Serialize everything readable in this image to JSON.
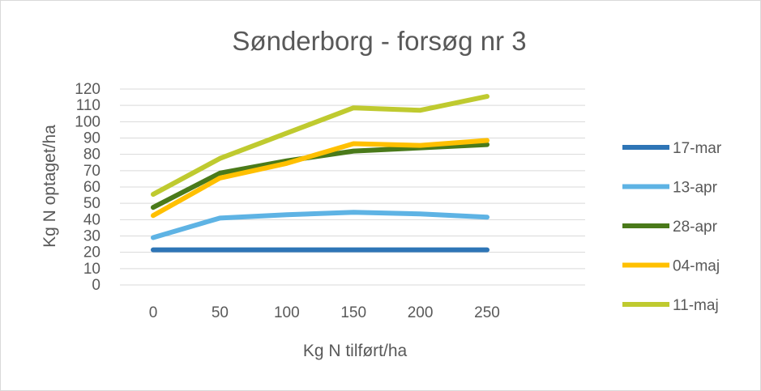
{
  "chart_data": {
    "type": "line",
    "title": "Sønderborg  - forsøg nr 3",
    "xlabel": "Kg N tilført/ha",
    "ylabel": "Kg N optaget/ha",
    "x": [
      0,
      50,
      100,
      150,
      200,
      250
    ],
    "x_tick_labels": [
      "0",
      "50",
      "100",
      "150",
      "200",
      "250"
    ],
    "ylim": [
      0,
      120
    ],
    "y_ticks": [
      0,
      10,
      20,
      30,
      40,
      50,
      60,
      70,
      80,
      90,
      100,
      110,
      120
    ],
    "grid": true,
    "legend_position": "right",
    "series": [
      {
        "name": "17-mar",
        "color": "#2e75b6",
        "values": [
          21.5,
          21.5,
          21.5,
          21.5,
          21.5,
          21.5
        ]
      },
      {
        "name": "13-apr",
        "color": "#5eb3e4",
        "values": [
          29,
          41,
          43,
          44.5,
          43.5,
          41.5
        ]
      },
      {
        "name": "28-apr",
        "color": "#4a7a1a",
        "values": [
          47.5,
          68.5,
          76,
          82,
          84,
          86
        ]
      },
      {
        "name": "04-maj",
        "color": "#ffc000",
        "values": [
          42.5,
          65.5,
          74.5,
          86.5,
          85.5,
          88.5
        ]
      },
      {
        "name": "11-maj",
        "color": "#bfca2f",
        "values": [
          55.5,
          77.5,
          93,
          108.5,
          107,
          115.5
        ]
      }
    ]
  }
}
